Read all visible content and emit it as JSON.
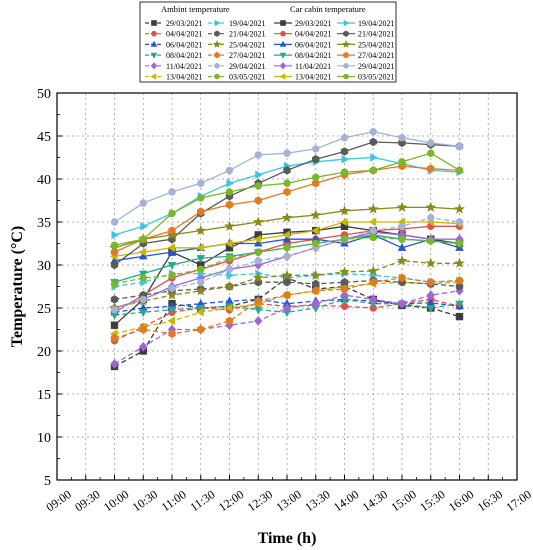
{
  "chart_data": {
    "type": "line",
    "xlabel": "Time (h)",
    "ylabel": "Temperature (°C)",
    "x_ticks": [
      "09:00",
      "09:30",
      "10:00",
      "10:30",
      "11:00",
      "11:30",
      "12:00",
      "12:30",
      "13:00",
      "13:30",
      "14:00",
      "14:30",
      "15:00",
      "15:30",
      "16:00",
      "16:30",
      "17:00"
    ],
    "y_ticks": [
      5,
      10,
      15,
      20,
      25,
      30,
      35,
      40,
      45,
      50
    ],
    "ylim": [
      5,
      50
    ],
    "grid": true,
    "legend_position": "top-center",
    "legend_groups": [
      {
        "title": "Ambint temperature",
        "line_style": "dashed"
      },
      {
        "title": "Car cabin temperature",
        "line_style": "solid"
      }
    ],
    "x": [
      "10:00",
      "10:30",
      "11:00",
      "11:30",
      "12:00",
      "12:30",
      "13:00",
      "13:30",
      "14:00",
      "14:30",
      "15:00",
      "15:30",
      "16:00"
    ],
    "series": [
      {
        "name": "29/03/2021",
        "color": "#3d3d3d",
        "marker": "square",
        "ambient": [
          18.2,
          20,
          25.5,
          25,
          25.2,
          26,
          28.5,
          27.2,
          27.5,
          26,
          25.3,
          25,
          24
        ],
        "cabin": [
          23,
          26,
          31.5,
          30,
          32,
          33.5,
          33.8,
          34,
          34.5,
          34,
          33.5,
          33,
          32.5
        ]
      },
      {
        "name": "04/04/2021",
        "color": "#d9534f",
        "marker": "circle",
        "ambient": [
          21.2,
          22.8,
          24.5,
          25,
          24.8,
          25.5,
          25.2,
          25.3,
          25.2,
          25,
          25.5,
          26,
          25.2
        ],
        "cabin": [
          24.5,
          26.5,
          28.5,
          29.5,
          30.5,
          31.5,
          32.5,
          33,
          33.5,
          34,
          34.2,
          34.5,
          34.5
        ]
      },
      {
        "name": "06/04/2021",
        "color": "#2456d6",
        "marker": "triangle-up",
        "ambient": [
          24.5,
          25,
          25.2,
          25.5,
          25.8,
          26,
          25.5,
          25.8,
          26,
          25.8,
          25.5,
          25.6,
          25.2
        ],
        "cabin": [
          30.5,
          31,
          31.5,
          32,
          32.5,
          32.5,
          33,
          33,
          32.5,
          33.5,
          32,
          33,
          32
        ]
      },
      {
        "name": "08/04/2021",
        "color": "#2aa889",
        "marker": "triangle-down",
        "ambient": [
          24.2,
          24.5,
          24.8,
          25,
          25.2,
          24.8,
          24.5,
          25,
          26,
          25.5,
          25.5,
          25,
          25.5
        ],
        "cabin": [
          28,
          29,
          30,
          30.8,
          31,
          31.5,
          32,
          32.5,
          33,
          33.5,
          33,
          32.8,
          32.5
        ]
      },
      {
        "name": "11/04/2021",
        "color": "#a264d9",
        "marker": "diamond",
        "ambient": [
          18.5,
          20.5,
          22.5,
          22.5,
          23,
          23.5,
          25,
          25.5,
          26.5,
          26,
          25.5,
          26.5,
          27
        ],
        "cabin": [
          25,
          26,
          27.5,
          28.5,
          29.5,
          30,
          31,
          32,
          33,
          33.8,
          33.5,
          33,
          33
        ]
      },
      {
        "name": "13/04/2021",
        "color": "#c9b800",
        "marker": "triangle-left",
        "ambient": [
          22,
          22.8,
          23.5,
          24.5,
          25,
          25.5,
          26.5,
          27,
          27.5,
          27.8,
          28,
          27.8,
          28
        ],
        "cabin": [
          31,
          31.5,
          32,
          32,
          32.5,
          33,
          33.5,
          34,
          35,
          35,
          35,
          35,
          34.8
        ]
      },
      {
        "name": "19/04/2021",
        "color": "#3fc4e0",
        "marker": "triangle-right",
        "ambient": [
          27.5,
          28,
          29,
          29,
          28.8,
          29,
          28.5,
          28.8,
          29,
          28.8,
          28.5,
          28,
          28.2
        ],
        "cabin": [
          33.5,
          34.5,
          36,
          38,
          39.5,
          40.5,
          41.5,
          42,
          42.3,
          42.5,
          41.8,
          41,
          40.8
        ]
      },
      {
        "name": "21/04/2021",
        "color": "#5a5a5a",
        "marker": "hexagon",
        "ambient": [
          26,
          26.5,
          27,
          27.2,
          27.5,
          28,
          28,
          27.8,
          28,
          28.2,
          28,
          27.8,
          27.5
        ],
        "cabin": [
          30,
          32.5,
          33,
          36,
          38,
          39.5,
          41,
          42.3,
          43.2,
          44.3,
          44.2,
          44,
          43.8
        ]
      },
      {
        "name": "25/04/2021",
        "color": "#8a8a1a",
        "marker": "star",
        "ambient": [
          25,
          25.8,
          26.5,
          27,
          27.5,
          28.5,
          28.8,
          28.8,
          29.2,
          29.3,
          30.5,
          30.2,
          30.2
        ],
        "cabin": [
          32,
          33,
          33.5,
          34,
          34.5,
          35,
          35.5,
          35.8,
          36.3,
          36.5,
          36.7,
          36.7,
          36.5
        ]
      },
      {
        "name": "27/04/2021",
        "color": "#e07c22",
        "marker": "hexagon",
        "ambient": [
          21.5,
          22.5,
          22,
          22.5,
          23.5,
          25.8,
          26.5,
          27,
          27.2,
          28,
          28.5,
          28,
          28.2
        ],
        "cabin": [
          31.5,
          33,
          34,
          36.2,
          37,
          37.5,
          38.5,
          39.5,
          40.5,
          41,
          41.5,
          41.2,
          41
        ]
      },
      {
        "name": "29/04/2021",
        "color": "#a3b3d6",
        "marker": "circle",
        "ambient": [
          24.8,
          26,
          27.3,
          28,
          29.5,
          30.5,
          31,
          32,
          33,
          34,
          34.5,
          35.5,
          35
        ],
        "cabin": [
          35,
          37.2,
          38.5,
          39.5,
          41,
          42.8,
          43,
          43.5,
          44.8,
          45.5,
          44.8,
          44.2,
          43.8
        ]
      },
      {
        "name": "03/05/2021",
        "color": "#78b82a",
        "marker": "circle",
        "ambient": [
          27.8,
          28.5,
          28.8,
          29.5,
          30.8,
          31.5,
          32,
          32.5,
          33,
          33.2,
          33,
          32.8,
          32.5
        ],
        "cabin": [
          32.3,
          33,
          36,
          37.8,
          38.5,
          39.2,
          39.5,
          40.2,
          40.8,
          41,
          42,
          43,
          41
        ]
      }
    ]
  }
}
